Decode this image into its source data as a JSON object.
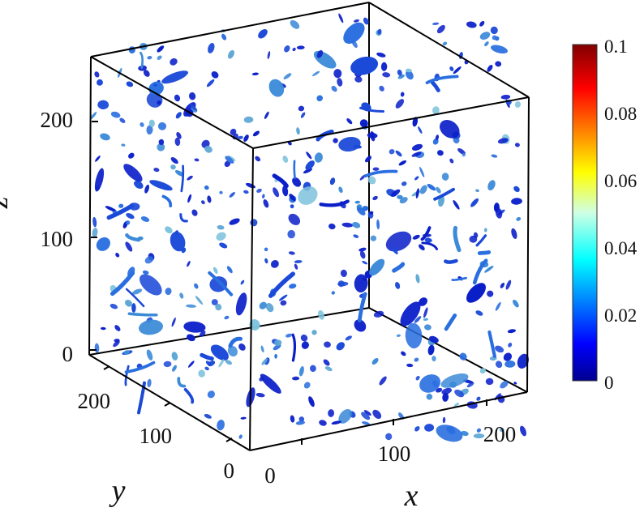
{
  "chart_data": {
    "type": "3d-isosurface",
    "title": "",
    "axes": {
      "x": {
        "label": "x",
        "range": [
          0,
          256
        ],
        "ticks": [
          0,
          100,
          200
        ],
        "tick_labels": [
          "0",
          "100",
          "200"
        ]
      },
      "y": {
        "label": "y",
        "range": [
          0,
          256
        ],
        "ticks": [
          0,
          100,
          200
        ],
        "tick_labels": [
          "0",
          "100",
          "200"
        ]
      },
      "z": {
        "label": "z",
        "range": [
          0,
          256
        ],
        "ticks": [
          0,
          100,
          200
        ],
        "tick_labels": [
          "0",
          "100",
          "200"
        ]
      }
    },
    "colorbar": {
      "colormap": "jet",
      "range": [
        0,
        0.1
      ],
      "ticks": [
        0,
        0.02,
        0.04,
        0.06,
        0.08,
        0.1
      ],
      "tick_labels": [
        "0",
        "0.02",
        "0.04",
        "0.06",
        "0.08",
        "0.1"
      ],
      "placement": "right"
    },
    "grid": false,
    "marker_colors": [
      "#0b1fc9",
      "#1b49d8",
      "#2a6fe0",
      "#3d8bd8",
      "#5aa6d4",
      "#7ec3dd"
    ]
  }
}
